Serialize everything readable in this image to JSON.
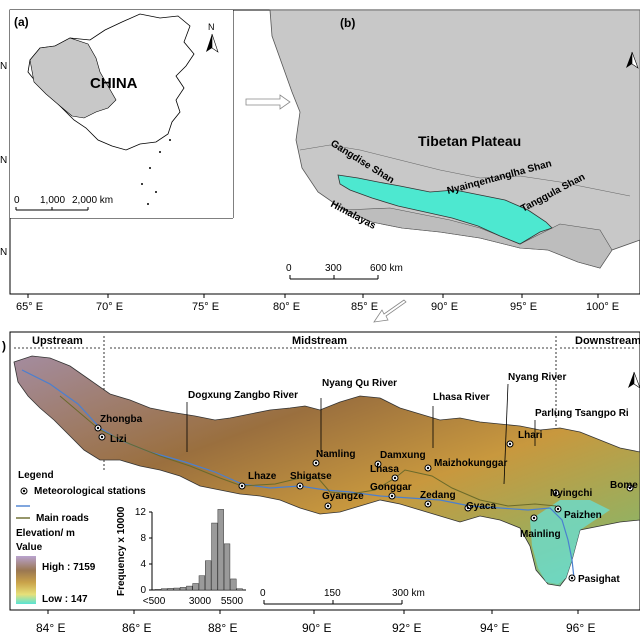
{
  "panel_a": {
    "tag": "(a)",
    "country": "CHINA",
    "north": "N",
    "scale_labels": [
      "0",
      "1,000",
      "2,000 km"
    ]
  },
  "panel_b": {
    "tag": "(b)",
    "title": "Tibetan Plateau",
    "ranges": [
      "Gangdise Shan",
      "Nyainqentanglha Shan",
      "Tanggula Shan",
      "Himalayas"
    ],
    "scale_labels": [
      "0",
      "300",
      "600 km"
    ],
    "north": "N"
  },
  "top_axis": [
    "65° E",
    "70° E",
    "75° E",
    "80° E",
    "85° E",
    "90° E",
    "95° E",
    "100° E"
  ],
  "top_left_ticks": [
    "N",
    "N",
    "N"
  ],
  "panel_c": {
    "tag": ")",
    "sections": {
      "upstream": "Upstream",
      "midstream": "Midstream",
      "downstream": "Downstream"
    },
    "rivers": [
      "Dogxung Zangbo River",
      "Nyang Qu River",
      "Lhasa River",
      "Nyang River",
      "Parlung Tsangpo Ri"
    ],
    "stations": [
      "Zhongba",
      "Lizi",
      "Lhaze",
      "Shigatse",
      "Namling",
      "Gyangze",
      "Damxung",
      "Lhasa",
      "Gonggar",
      "Zedang",
      "Maizhokunggar",
      "Gyaca",
      "Lhari",
      "Nyingchi",
      "Paizhen",
      "Mainling",
      "Bome",
      "Pasighat"
    ],
    "north": "N"
  },
  "legend": {
    "title": "Legend",
    "station": "Meteorological stations",
    "road": "Main roads",
    "elevation": "Elevation/ m",
    "value": "Value",
    "high": "High : 7159",
    "low": "Low : 147"
  },
  "bottom_scale": [
    "0",
    "150",
    "300 km"
  ],
  "bottom_axis": [
    "84° E",
    "86° E",
    "88° E",
    "90° E",
    "92° E",
    "94° E",
    "96° E"
  ],
  "histogram": {
    "ylabel": "Frequency x 10000",
    "yticks": [
      "0",
      "4",
      "8",
      "12"
    ],
    "xticks": [
      "<500",
      "3000",
      "5500"
    ],
    "bars": [
      0.1,
      0.2,
      0.25,
      0.3,
      0.4,
      0.6,
      1.0,
      2.2,
      4.5,
      10.3,
      12.4,
      7.1,
      1.7,
      0.2
    ]
  },
  "colors": {
    "land_gray": "#c8c8c8",
    "basin": "#4de8d0",
    "high": "#a78fc7",
    "low": "#55e0d2"
  }
}
